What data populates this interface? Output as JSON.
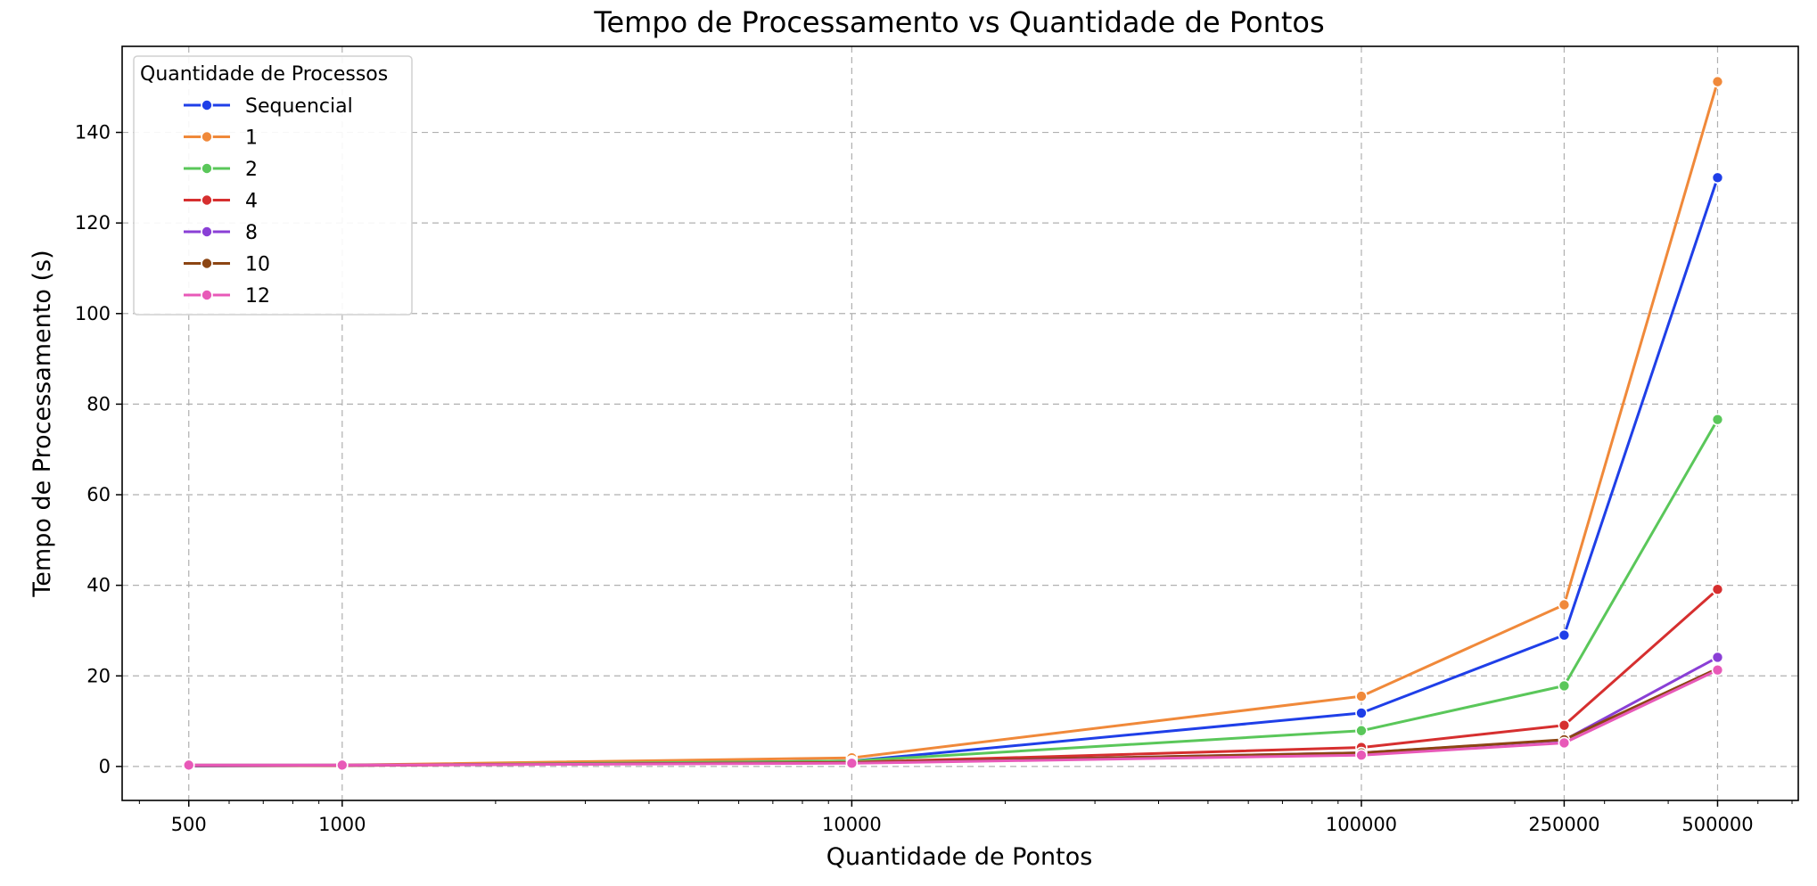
{
  "chart_data": {
    "type": "line",
    "title": "Tempo de Processamento vs Quantidade de Pontos",
    "xlabel": "Quantidade de Pontos",
    "ylabel": "Tempo de Processamento (s)",
    "x_scale": "log",
    "x": [
      500,
      1000,
      10000,
      100000,
      250000,
      500000
    ],
    "x_tick_labels": [
      "500",
      "1000",
      "10000",
      "100000",
      "250000",
      "500000"
    ],
    "xlim": [
      370,
      720000
    ],
    "ylim": [
      -7.5,
      159
    ],
    "y_ticks": [
      0,
      20,
      40,
      60,
      80,
      100,
      120,
      140
    ],
    "y_tick_labels": [
      "0",
      "20",
      "40",
      "60",
      "80",
      "100",
      "120",
      "140"
    ],
    "grid": true,
    "legend": {
      "title": "Quantidade de Processos",
      "placement": "top-left"
    },
    "series": [
      {
        "name": "Sequencial",
        "color": "#1f3fe8",
        "values": [
          0.1,
          0.2,
          1.2,
          11.8,
          29.0,
          130.0
        ]
      },
      {
        "name": "1",
        "color": "#f0893a",
        "values": [
          0.2,
          0.3,
          1.9,
          15.5,
          35.7,
          151.2
        ]
      },
      {
        "name": "2",
        "color": "#5ac75a",
        "values": [
          0.2,
          0.2,
          1.2,
          7.9,
          17.8,
          76.6
        ]
      },
      {
        "name": "4",
        "color": "#d62f2f",
        "values": [
          0.2,
          0.2,
          0.9,
          4.2,
          9.1,
          39.1
        ]
      },
      {
        "name": "8",
        "color": "#8a3fd6",
        "values": [
          0.3,
          0.3,
          0.8,
          3.0,
          5.8,
          24.1
        ]
      },
      {
        "name": "10",
        "color": "#8c4513",
        "values": [
          0.3,
          0.3,
          0.8,
          3.0,
          5.9,
          21.6
        ]
      },
      {
        "name": "12",
        "color": "#e859b8",
        "values": [
          0.3,
          0.3,
          0.7,
          2.5,
          5.2,
          21.3
        ]
      }
    ]
  }
}
